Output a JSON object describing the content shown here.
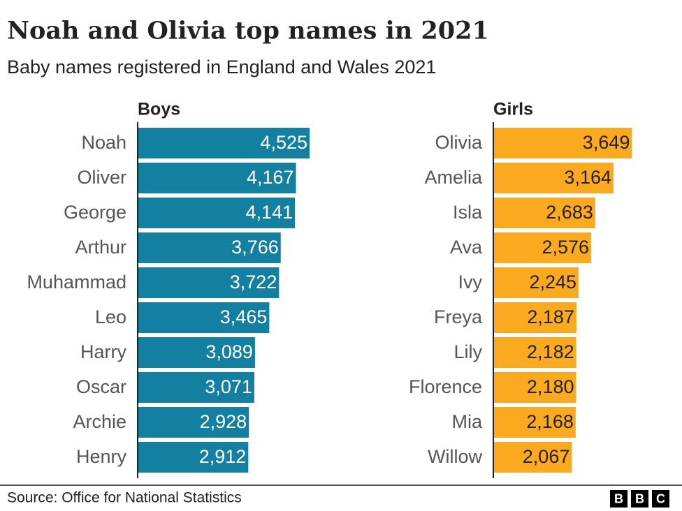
{
  "title": "Noah and Olivia top names in 2021",
  "subtitle": "Baby names registered in England and Wales 2021",
  "source": "Source: Office for National Statistics",
  "logo": [
    "B",
    "B",
    "C"
  ],
  "chart_data": [
    {
      "type": "bar",
      "orientation": "horizontal",
      "title": "Boys",
      "color": "#1380a1",
      "value_label_color": "#ffffff",
      "categories": [
        "Noah",
        "Oliver",
        "George",
        "Arthur",
        "Muhammad",
        "Leo",
        "Harry",
        "Oscar",
        "Archie",
        "Henry"
      ],
      "values": [
        4525,
        4167,
        4141,
        3766,
        3722,
        3465,
        3089,
        3071,
        2928,
        2912
      ],
      "value_labels": [
        "4,525",
        "4,167",
        "4,141",
        "3,766",
        "3,722",
        "3,465",
        "3,089",
        "3,071",
        "2,928",
        "2,912"
      ]
    },
    {
      "type": "bar",
      "orientation": "horizontal",
      "title": "Girls",
      "color": "#fbaa1f",
      "value_label_color": "#222222",
      "categories": [
        "Olivia",
        "Amelia",
        "Isla",
        "Ava",
        "Ivy",
        "Freya",
        "Lily",
        "Florence",
        "Mia",
        "Willow"
      ],
      "values": [
        3649,
        3164,
        2683,
        2576,
        2245,
        2187,
        2182,
        2180,
        2168,
        2067
      ],
      "value_labels": [
        "3,649",
        "3,164",
        "2,683",
        "2,576",
        "2,245",
        "2,187",
        "2,182",
        "2,180",
        "2,168",
        "2,067"
      ]
    }
  ]
}
